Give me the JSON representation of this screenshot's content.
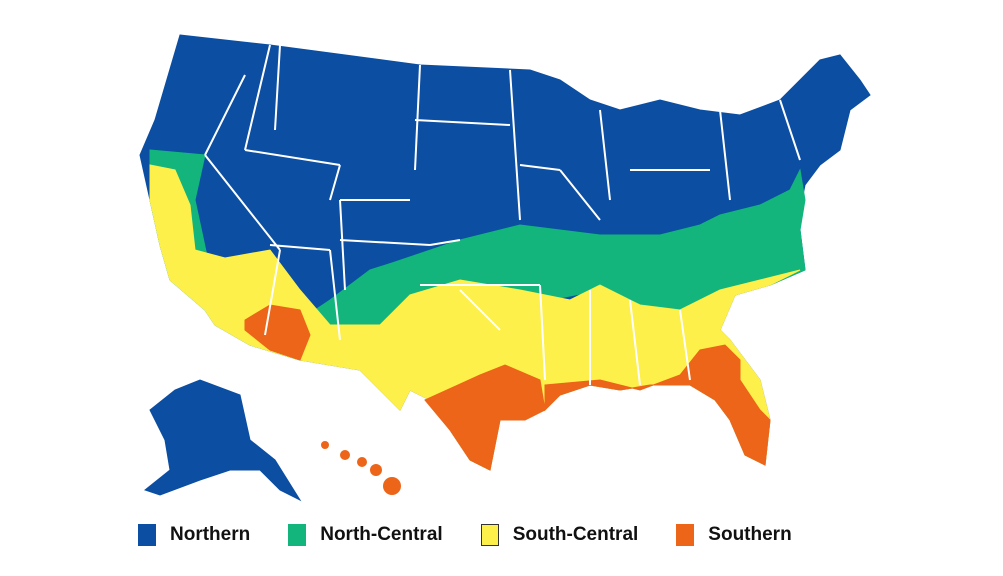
{
  "colors": {
    "northern": "#0b4ea2",
    "north_central": "#13b57d",
    "south_central": "#fdf04a",
    "southern": "#ec6519"
  },
  "legend": [
    {
      "label": "Northern",
      "color": "#0b4ea2"
    },
    {
      "label": "North-Central",
      "color": "#13b57d"
    },
    {
      "label": "South-Central",
      "color": "#fdf04a"
    },
    {
      "label": "Southern",
      "color": "#ec6519"
    }
  ]
}
